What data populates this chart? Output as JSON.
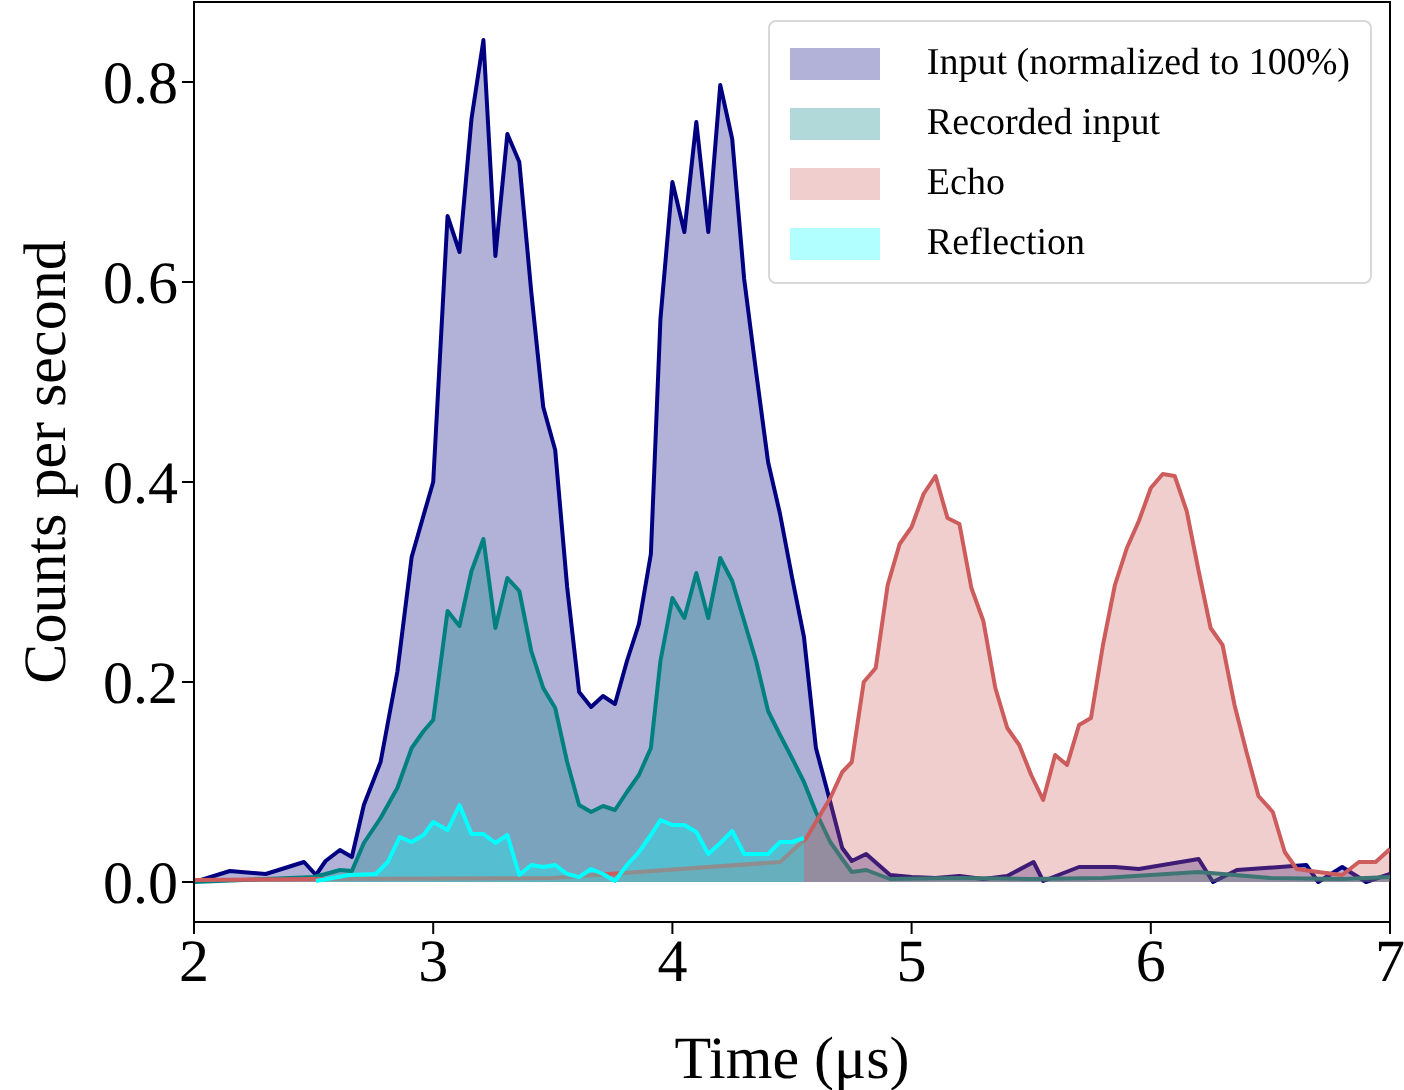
{
  "chart_data": {
    "type": "area",
    "xlabel": "Time (μs)",
    "ylabel": "Counts per second",
    "xlim": [
      2,
      7
    ],
    "xticks": [
      2,
      3,
      4,
      5,
      6,
      7
    ],
    "ylim": [
      -0.04,
      0.88
    ],
    "yticks": [
      {
        "value": 0,
        "label": "0.0"
      },
      0.2,
      0.4,
      0.6,
      0.8
    ],
    "legend": "top right",
    "marker": "none",
    "series": [
      {
        "name": "Input (normalized to 100%)",
        "color": "#000080",
        "x": [
          2.0,
          2.15,
          2.3,
          2.46,
          2.51,
          2.55,
          2.61,
          2.66,
          2.71,
          2.78,
          2.85,
          2.91,
          2.96,
          3.0,
          3.06,
          3.11,
          3.16,
          3.21,
          3.26,
          3.31,
          3.36,
          3.41,
          3.46,
          3.51,
          3.56,
          3.61,
          3.66,
          3.71,
          3.76,
          3.81,
          3.86,
          3.91,
          3.95,
          4.0,
          4.05,
          4.1,
          4.15,
          4.2,
          4.25,
          4.3,
          4.35,
          4.4,
          4.45,
          4.5,
          4.55,
          4.6,
          4.66,
          4.71,
          4.75,
          4.81,
          4.91,
          5.0,
          5.1,
          5.2,
          5.3,
          5.4,
          5.51,
          5.55,
          5.7,
          5.85,
          5.95,
          6.2,
          6.26,
          6.36,
          6.54,
          6.65,
          6.7,
          6.8,
          6.9,
          7.0
        ],
        "values": [
          0,
          0.011,
          0.008,
          0.02,
          0.007,
          0.021,
          0.032,
          0.025,
          0.077,
          0.12,
          0.21,
          0.325,
          0.367,
          0.4,
          0.666,
          0.63,
          0.763,
          0.842,
          0.626,
          0.748,
          0.72,
          0.59,
          0.475,
          0.432,
          0.295,
          0.19,
          0.175,
          0.186,
          0.178,
          0.221,
          0.258,
          0.328,
          0.563,
          0.7,
          0.65,
          0.76,
          0.65,
          0.797,
          0.743,
          0.603,
          0.51,
          0.42,
          0.368,
          0.305,
          0.245,
          0.134,
          0.08,
          0.034,
          0.021,
          0.028,
          0.007,
          0.005,
          0.004,
          0.006,
          0.003,
          0.006,
          0.02,
          0.001,
          0.015,
          0.015,
          0.013,
          0.023,
          0,
          0.012,
          0.015,
          0.017,
          0,
          0.015,
          0,
          0.008
        ]
      },
      {
        "name": "Recorded input",
        "color": "#008080",
        "x": [
          2.0,
          2.5,
          2.55,
          2.61,
          2.66,
          2.71,
          2.78,
          2.85,
          2.91,
          2.96,
          3.0,
          3.06,
          3.11,
          3.16,
          3.21,
          3.26,
          3.31,
          3.36,
          3.41,
          3.46,
          3.51,
          3.56,
          3.61,
          3.66,
          3.71,
          3.76,
          3.81,
          3.86,
          3.91,
          3.95,
          4.0,
          4.05,
          4.1,
          4.15,
          4.2,
          4.25,
          4.3,
          4.35,
          4.4,
          4.45,
          4.5,
          4.55,
          4.6,
          4.66,
          4.71,
          4.75,
          4.81,
          4.91,
          5.2,
          5.5,
          5.8,
          6.2,
          6.5,
          6.8,
          7.0
        ],
        "values": [
          0,
          0.005,
          0.008,
          0.012,
          0.011,
          0.039,
          0.064,
          0.094,
          0.134,
          0.151,
          0.162,
          0.271,
          0.256,
          0.311,
          0.343,
          0.254,
          0.304,
          0.291,
          0.231,
          0.194,
          0.174,
          0.12,
          0.077,
          0.07,
          0.076,
          0.072,
          0.09,
          0.107,
          0.134,
          0.221,
          0.284,
          0.264,
          0.309,
          0.264,
          0.324,
          0.301,
          0.261,
          0.221,
          0.171,
          0.147,
          0.124,
          0.1,
          0.07,
          0.04,
          0.023,
          0.01,
          0.012,
          0.003,
          0.004,
          0.003,
          0.004,
          0.01,
          0.004,
          0.003,
          0.005
        ]
      },
      {
        "name": "Echo",
        "color": "#cd5c5c",
        "x": [
          2.0,
          2.5,
          3.5,
          4.45,
          4.56,
          4.66,
          4.71,
          4.75,
          4.8,
          4.85,
          4.9,
          4.95,
          5.0,
          5.05,
          5.1,
          5.15,
          5.2,
          5.25,
          5.3,
          5.35,
          5.4,
          5.45,
          5.5,
          5.55,
          5.6,
          5.65,
          5.7,
          5.75,
          5.8,
          5.85,
          5.9,
          5.95,
          6.0,
          6.05,
          6.1,
          6.15,
          6.2,
          6.25,
          6.3,
          6.35,
          6.4,
          6.45,
          6.51,
          6.56,
          6.61,
          6.7,
          6.8,
          6.87,
          6.94,
          7.0
        ],
        "values": [
          0.002,
          0.003,
          0.004,
          0.02,
          0.044,
          0.084,
          0.11,
          0.12,
          0.2,
          0.214,
          0.297,
          0.338,
          0.355,
          0.388,
          0.406,
          0.364,
          0.358,
          0.294,
          0.261,
          0.194,
          0.154,
          0.137,
          0.107,
          0.082,
          0.127,
          0.117,
          0.157,
          0.164,
          0.237,
          0.297,
          0.334,
          0.361,
          0.394,
          0.408,
          0.406,
          0.371,
          0.311,
          0.254,
          0.237,
          0.177,
          0.13,
          0.086,
          0.07,
          0.03,
          0.013,
          0.01,
          0.007,
          0.02,
          0.02,
          0.033
        ]
      },
      {
        "name": "Reflection",
        "color": "#00ffff",
        "x": [
          2.51,
          2.65,
          2.76,
          2.81,
          2.86,
          2.91,
          2.96,
          3.0,
          3.06,
          3.11,
          3.16,
          3.21,
          3.26,
          3.31,
          3.36,
          3.41,
          3.46,
          3.51,
          3.56,
          3.61,
          3.66,
          3.71,
          3.76,
          3.81,
          3.86,
          3.91,
          3.95,
          4.0,
          4.05,
          4.1,
          4.15,
          4.2,
          4.25,
          4.3,
          4.35,
          4.4,
          4.45,
          4.5,
          4.55
        ],
        "values": [
          0.001,
          0.007,
          0.008,
          0.02,
          0.045,
          0.04,
          0.047,
          0.06,
          0.052,
          0.077,
          0.048,
          0.048,
          0.039,
          0.047,
          0.007,
          0.017,
          0.015,
          0.017,
          0.008,
          0.005,
          0.013,
          0.008,
          0.001,
          0.017,
          0.03,
          0.047,
          0.062,
          0.057,
          0.057,
          0.05,
          0.028,
          0.039,
          0.051,
          0.028,
          0.028,
          0.028,
          0.04,
          0.04,
          0.044
        ]
      }
    ]
  }
}
